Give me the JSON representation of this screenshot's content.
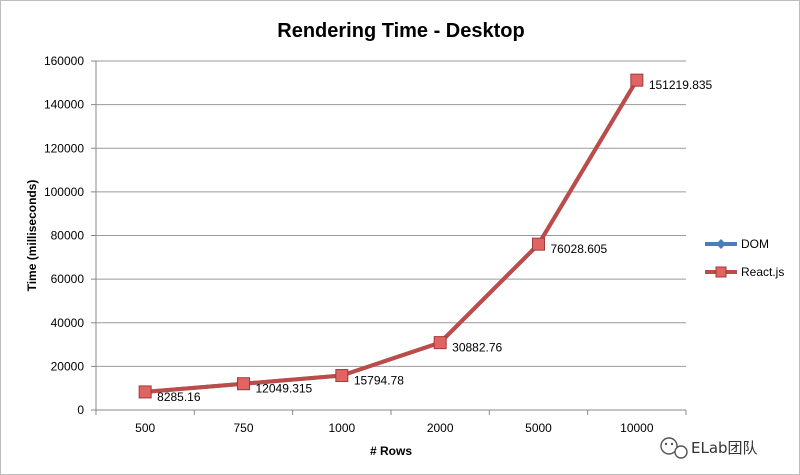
{
  "chart_data": {
    "type": "line",
    "title": "Rendering Time - Desktop",
    "xlabel": "# Rows",
    "ylabel": "Time (milliseconds)",
    "categories": [
      "500",
      "750",
      "1000",
      "2000",
      "5000",
      "10000"
    ],
    "ylim": [
      0,
      160000
    ],
    "yticks": [
      0,
      20000,
      40000,
      60000,
      80000,
      100000,
      120000,
      140000,
      160000
    ],
    "grid": "horizontal",
    "legend_position": "right",
    "series": [
      {
        "name": "DOM",
        "color": "#4a7ebb",
        "marker": "diamond",
        "values": [
          8285.16,
          12049.315,
          15794.78,
          30882.76,
          76028.605,
          151219.835
        ]
      },
      {
        "name": "React.js",
        "color": "#be4b48",
        "marker": "square",
        "values": [
          8285.16,
          12049.315,
          15794.78,
          30882.76,
          76028.605,
          151219.835
        ]
      }
    ],
    "data_labels": [
      "8285.16",
      "12049.315",
      "15794.78",
      "30882.76",
      "76028.605",
      "151219.835"
    ]
  },
  "watermark": {
    "text": "ELab团队",
    "icon": "wechat-icon"
  }
}
